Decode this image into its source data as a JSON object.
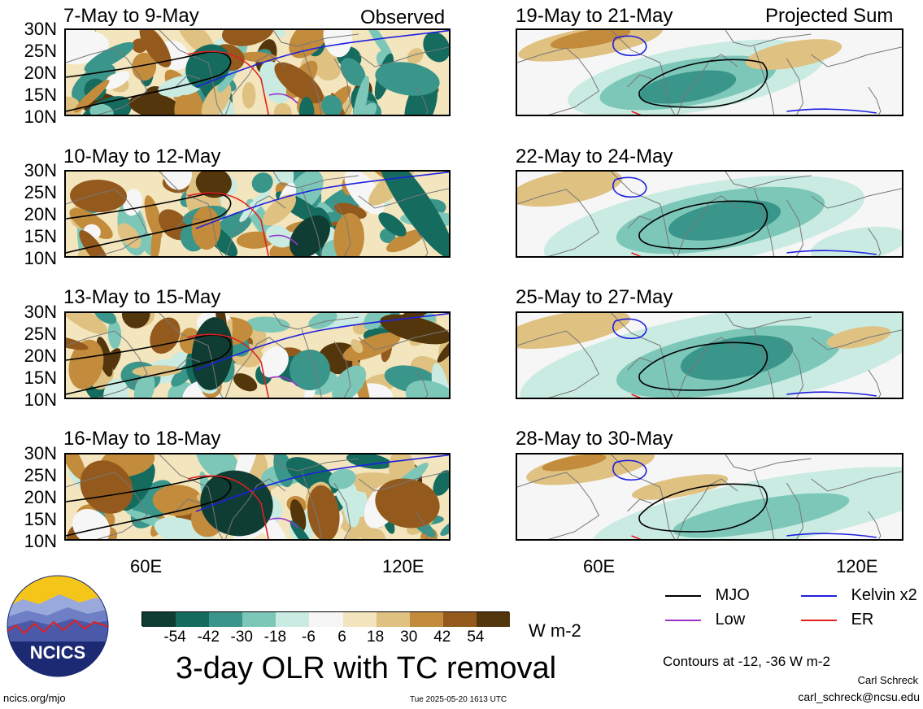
{
  "headers": {
    "observed": "Observed",
    "projected": "Projected Sum"
  },
  "panels_left": [
    {
      "title": "7-May to 9-May"
    },
    {
      "title": "10-May to 12-May"
    },
    {
      "title": "13-May to 15-May"
    },
    {
      "title": "16-May to 18-May"
    }
  ],
  "panels_right": [
    {
      "title": "19-May to 21-May"
    },
    {
      "title": "22-May to 24-May"
    },
    {
      "title": "25-May to 27-May"
    },
    {
      "title": "28-May to 30-May"
    }
  ],
  "lat_labels": [
    "30N",
    "25N",
    "20N",
    "15N",
    "10N"
  ],
  "lon_labels": [
    "60E",
    "120E"
  ],
  "legend": {
    "mjo": {
      "label": "MJO",
      "color": "#000000"
    },
    "kelvin": {
      "label": "Kelvin x2",
      "color": "#1f1fe0"
    },
    "low": {
      "label": "Low",
      "color": "#9933cc"
    },
    "er": {
      "label": "ER",
      "color": "#e02020"
    }
  },
  "colorbar": {
    "colors": [
      "#0f3d33",
      "#146b5e",
      "#3a958a",
      "#7dc7b9",
      "#c9ebe2",
      "#f6f6f6",
      "#f3e5bd",
      "#dfc181",
      "#c38b3c",
      "#945a1d",
      "#54360d"
    ],
    "ticks": [
      "-54",
      "-42",
      "-30",
      "-18",
      "-6",
      "6",
      "18",
      "30",
      "42",
      "54"
    ],
    "units": "W m-2"
  },
  "main_title": "3-day OLR with TC removal",
  "contours_note": "Contours at -12, -36 W m-2",
  "author": "Carl Schreck",
  "email": "carl_schreck@ncsu.edu",
  "url": "ncics.org/mjo",
  "timestamp": "Tue 2025-05-20 1613 UTC",
  "logo_text": "NCICS"
}
